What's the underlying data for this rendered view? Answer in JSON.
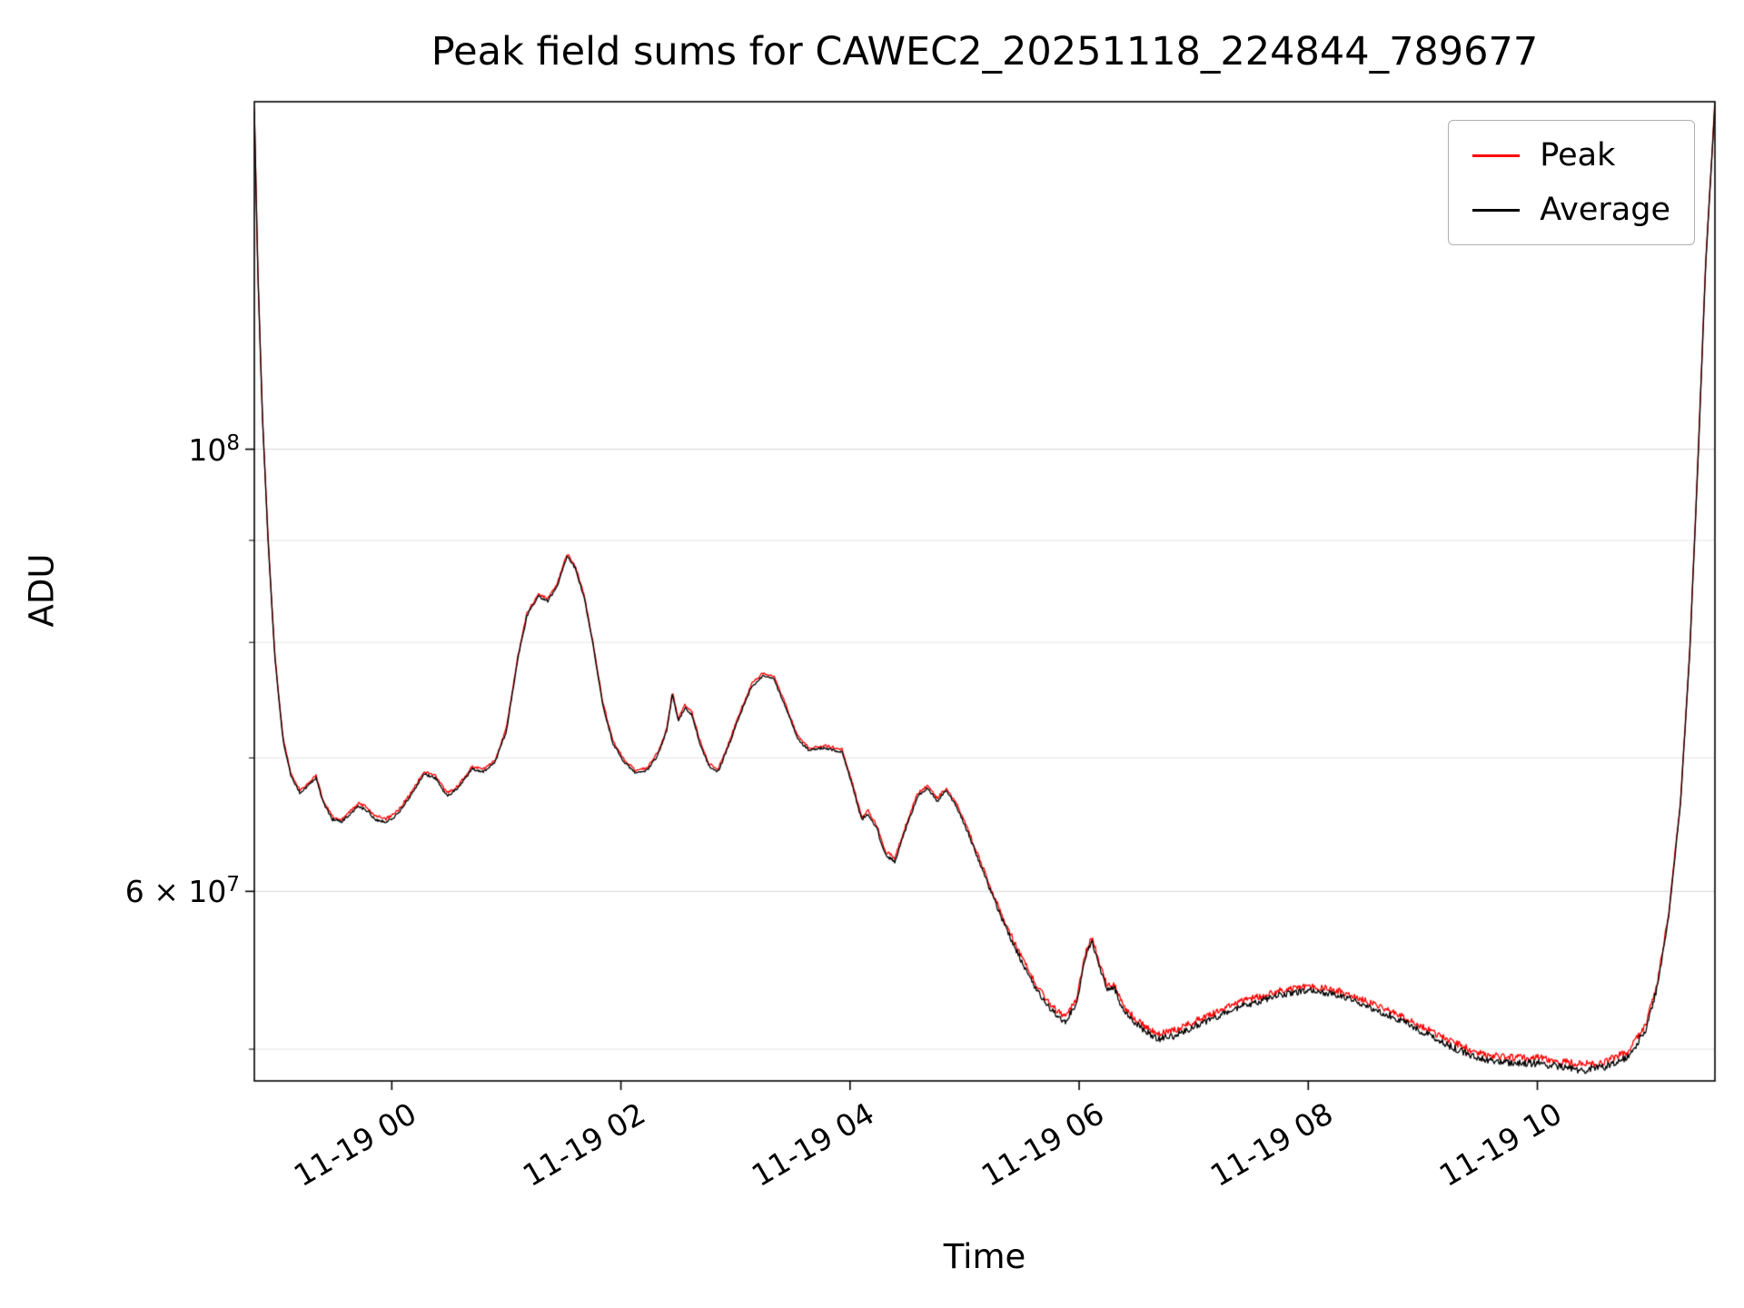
{
  "chart_data": {
    "type": "line",
    "title": "Peak field sums for CAWEC2_20251118_224844_789677",
    "xlabel": "Time",
    "ylabel": "ADU",
    "yscale": "log",
    "grid": "horizontal",
    "legend_position": "upper right",
    "ylim": [
      48200000,
      149400000
    ],
    "xlim_hours": [
      -1.2,
      11.55
    ],
    "x_ticks": [
      {
        "hour": 0,
        "label": "11-19 00"
      },
      {
        "hour": 2,
        "label": "11-19 02"
      },
      {
        "hour": 4,
        "label": "11-19 04"
      },
      {
        "hour": 6,
        "label": "11-19 06"
      },
      {
        "hour": 8,
        "label": "11-19 08"
      },
      {
        "hour": 10,
        "label": "11-19 10"
      }
    ],
    "y_ticks": [
      {
        "value": 100000000,
        "base": "10",
        "exp": "8"
      },
      {
        "value": 60000000,
        "base": "6 × 10",
        "exp": "7"
      }
    ],
    "y_grid_minor": [
      50000000,
      70000000,
      80000000,
      90000000
    ],
    "series": [
      {
        "name": "Peak",
        "color": "#ff0000",
        "derived_from": "Average",
        "offset_rel": 0.003,
        "offset_rel_low": 0.0035
      },
      {
        "name": "Average",
        "color": "#000000",
        "points_hours_x1e7": [
          [
            -1.2,
            14.8
          ],
          [
            -1.17,
            12.3
          ],
          [
            -1.13,
            10.4
          ],
          [
            -1.08,
            9.0
          ],
          [
            -1.02,
            7.85
          ],
          [
            -0.95,
            7.15
          ],
          [
            -0.88,
            6.85
          ],
          [
            -0.8,
            6.72
          ],
          [
            -0.73,
            6.78
          ],
          [
            -0.66,
            6.84
          ],
          [
            -0.6,
            6.65
          ],
          [
            -0.52,
            6.52
          ],
          [
            -0.44,
            6.5
          ],
          [
            -0.36,
            6.56
          ],
          [
            -0.29,
            6.62
          ],
          [
            -0.22,
            6.59
          ],
          [
            -0.14,
            6.52
          ],
          [
            -0.05,
            6.5
          ],
          [
            0.05,
            6.56
          ],
          [
            0.15,
            6.68
          ],
          [
            0.28,
            6.87
          ],
          [
            0.38,
            6.84
          ],
          [
            0.48,
            6.7
          ],
          [
            0.58,
            6.76
          ],
          [
            0.7,
            6.91
          ],
          [
            0.8,
            6.89
          ],
          [
            0.9,
            6.96
          ],
          [
            1.0,
            7.22
          ],
          [
            1.1,
            7.85
          ],
          [
            1.18,
            8.25
          ],
          [
            1.28,
            8.44
          ],
          [
            1.36,
            8.39
          ],
          [
            1.44,
            8.52
          ],
          [
            1.53,
            8.84
          ],
          [
            1.6,
            8.72
          ],
          [
            1.68,
            8.42
          ],
          [
            1.76,
            7.95
          ],
          [
            1.84,
            7.45
          ],
          [
            1.93,
            7.12
          ],
          [
            2.03,
            6.96
          ],
          [
            2.13,
            6.88
          ],
          [
            2.23,
            6.9
          ],
          [
            2.32,
            7.02
          ],
          [
            2.4,
            7.22
          ],
          [
            2.45,
            7.54
          ],
          [
            2.5,
            7.3
          ],
          [
            2.56,
            7.42
          ],
          [
            2.62,
            7.36
          ],
          [
            2.69,
            7.12
          ],
          [
            2.77,
            6.93
          ],
          [
            2.85,
            6.89
          ],
          [
            2.94,
            7.1
          ],
          [
            3.04,
            7.36
          ],
          [
            3.14,
            7.6
          ],
          [
            3.24,
            7.7
          ],
          [
            3.34,
            7.66
          ],
          [
            3.44,
            7.42
          ],
          [
            3.54,
            7.16
          ],
          [
            3.64,
            7.06
          ],
          [
            3.78,
            7.08
          ],
          [
            3.93,
            7.05
          ],
          [
            4.03,
            6.75
          ],
          [
            4.1,
            6.52
          ],
          [
            4.16,
            6.56
          ],
          [
            4.23,
            6.46
          ],
          [
            4.31,
            6.26
          ],
          [
            4.39,
            6.21
          ],
          [
            4.49,
            6.46
          ],
          [
            4.59,
            6.7
          ],
          [
            4.68,
            6.76
          ],
          [
            4.76,
            6.66
          ],
          [
            4.84,
            6.74
          ],
          [
            4.93,
            6.62
          ],
          [
            5.03,
            6.42
          ],
          [
            5.18,
            6.1
          ],
          [
            5.33,
            5.8
          ],
          [
            5.48,
            5.56
          ],
          [
            5.62,
            5.36
          ],
          [
            5.76,
            5.23
          ],
          [
            5.88,
            5.16
          ],
          [
            5.98,
            5.28
          ],
          [
            6.06,
            5.58
          ],
          [
            6.11,
            5.66
          ],
          [
            6.17,
            5.52
          ],
          [
            6.24,
            5.36
          ],
          [
            6.31,
            5.36
          ],
          [
            6.39,
            5.22
          ],
          [
            6.49,
            5.15
          ],
          [
            6.59,
            5.1
          ],
          [
            6.7,
            5.06
          ],
          [
            6.84,
            5.08
          ],
          [
            7.0,
            5.13
          ],
          [
            7.2,
            5.19
          ],
          [
            7.4,
            5.25
          ],
          [
            7.6,
            5.29
          ],
          [
            7.8,
            5.33
          ],
          [
            8.0,
            5.35
          ],
          [
            8.2,
            5.33
          ],
          [
            8.4,
            5.29
          ],
          [
            8.6,
            5.23
          ],
          [
            8.8,
            5.17
          ],
          [
            9.0,
            5.1
          ],
          [
            9.2,
            5.03
          ],
          [
            9.4,
            4.97
          ],
          [
            9.6,
            4.93
          ],
          [
            9.8,
            4.92
          ],
          [
            10.0,
            4.92
          ],
          [
            10.2,
            4.9
          ],
          [
            10.4,
            4.88
          ],
          [
            10.6,
            4.9
          ],
          [
            10.8,
            4.96
          ],
          [
            10.95,
            5.12
          ],
          [
            11.05,
            5.38
          ],
          [
            11.15,
            5.85
          ],
          [
            11.25,
            6.65
          ],
          [
            11.33,
            7.9
          ],
          [
            11.4,
            9.8
          ],
          [
            11.47,
            12.4
          ],
          [
            11.55,
            14.9
          ]
        ]
      }
    ],
    "render": {
      "noise_rel": 0.0015,
      "noise_rel_low": 0.003,
      "low_threshold": 68000000,
      "low_range": 20000000
    }
  }
}
